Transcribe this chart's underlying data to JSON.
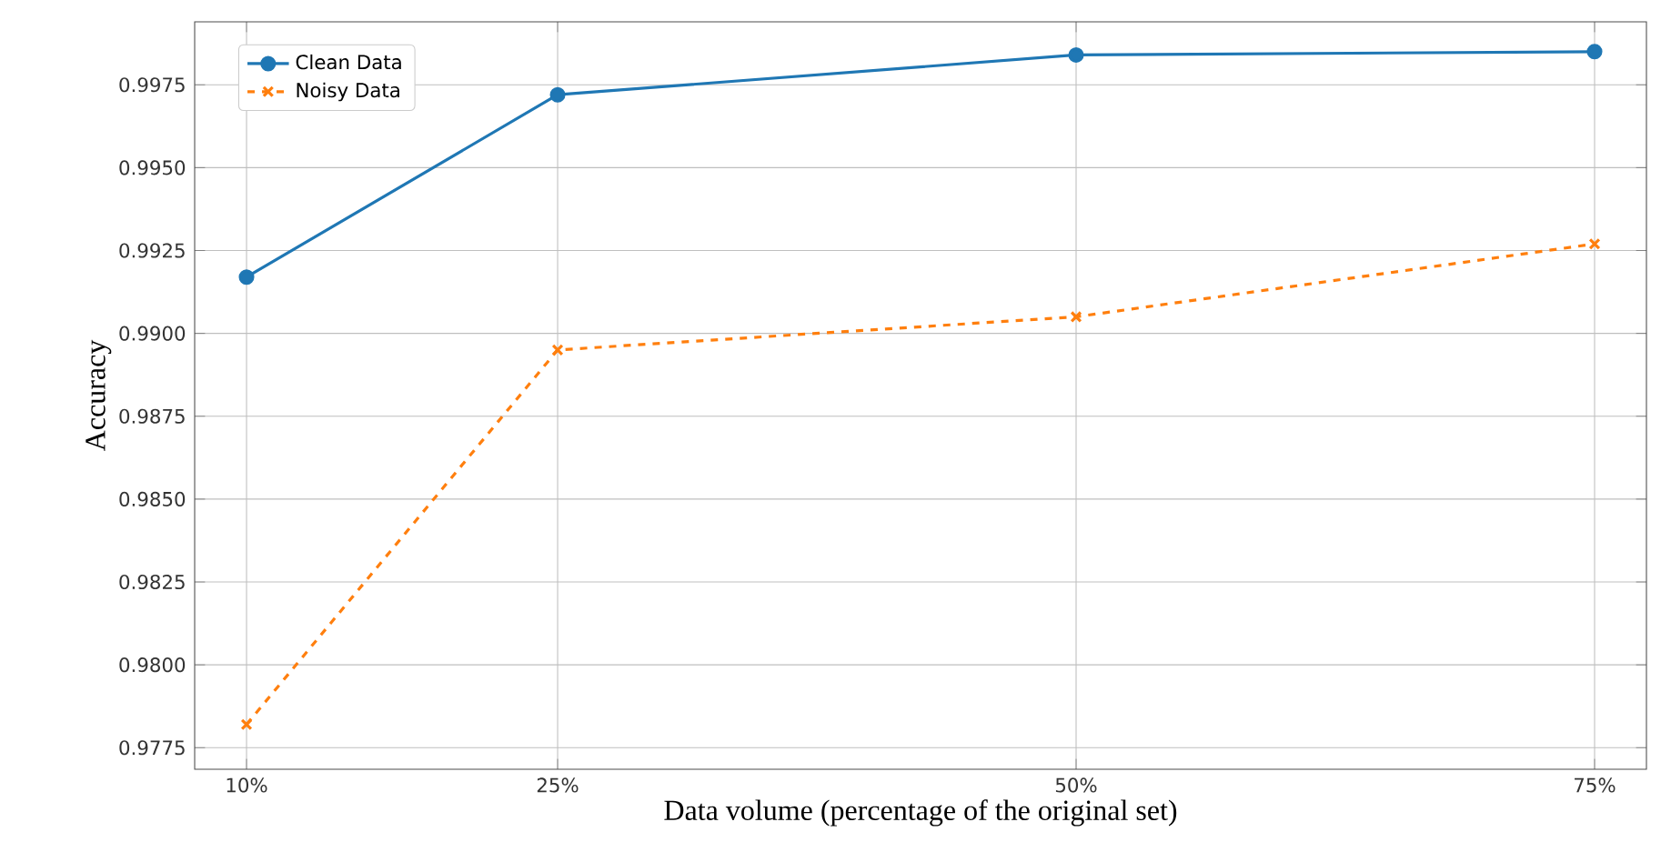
{
  "chart_data": {
    "type": "line",
    "xlabel": "Data volume (percentage of the original set)",
    "ylabel": "Accuracy",
    "x": [
      10,
      25,
      50,
      75
    ],
    "series": [
      {
        "name": "Clean Data",
        "color": "#1f77b4",
        "values": [
          0.9917,
          0.9972,
          0.9984,
          0.9985
        ],
        "marker": "circle",
        "line_style": "solid"
      },
      {
        "name": "Noisy Data",
        "color": "#ff7f0e",
        "values": [
          0.9782,
          0.9895,
          0.9905,
          0.9927
        ],
        "marker": "cross",
        "line_style": "dashed"
      }
    ],
    "xlim": [
      7.5,
      77.5
    ],
    "xticks": [
      {
        "value": 10,
        "label": "10%"
      },
      {
        "value": 25,
        "label": "25%"
      },
      {
        "value": 50,
        "label": "50%"
      },
      {
        "value": 75,
        "label": "75%"
      }
    ],
    "ylim": [
      0.97685,
      0.9994
    ],
    "yticks": [
      {
        "value": 0.9775,
        "label": "0.9775"
      },
      {
        "value": 0.98,
        "label": "0.9800"
      },
      {
        "value": 0.9825,
        "label": "0.9825"
      },
      {
        "value": 0.985,
        "label": "0.9850"
      },
      {
        "value": 0.9875,
        "label": "0.9875"
      },
      {
        "value": 0.99,
        "label": "0.9900"
      },
      {
        "value": 0.9925,
        "label": "0.9925"
      },
      {
        "value": 0.995,
        "label": "0.9950"
      },
      {
        "value": 0.9975,
        "label": "0.9975"
      }
    ],
    "grid": true,
    "legend": "top left"
  }
}
